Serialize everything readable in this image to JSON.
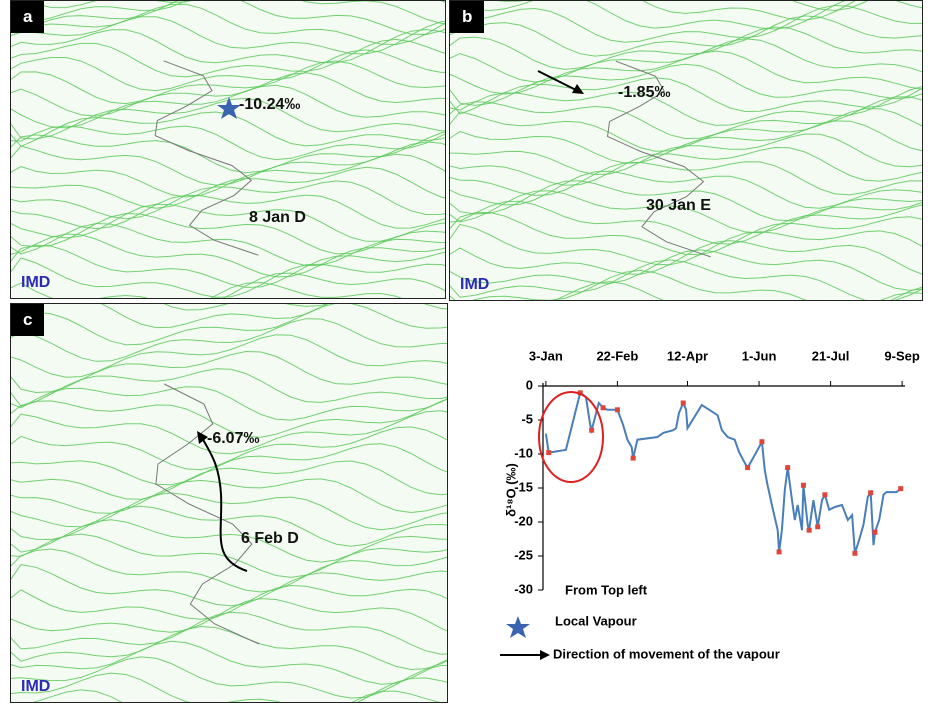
{
  "panels": [
    {
      "tag": "a",
      "value_label": "-10.24‰",
      "date_label": "8 Jan D",
      "source": "IMD"
    },
    {
      "tag": "b",
      "value_label": "-1.85‰",
      "date_label": "30 Jan E",
      "source": "IMD"
    },
    {
      "tag": "c",
      "value_label": "-6.07‰",
      "date_label": "6 Feb D",
      "source": "IMD"
    }
  ],
  "chart_data": {
    "type": "line",
    "y_label": "δ¹⁸O (‰)",
    "x": [
      3,
      5,
      11,
      17,
      27,
      31,
      34,
      35,
      40,
      43,
      46,
      53,
      57,
      60,
      63,
      64,
      67,
      81,
      85,
      92,
      94,
      96,
      99,
      101,
      102,
      112,
      123,
      126,
      130,
      135,
      138,
      142,
      144,
      147,
      151,
      154,
      156,
      158,
      161,
      165,
      166,
      168,
      170,
      172,
      175,
      177,
      179,
      182,
      183,
      186,
      187,
      190,
      193,
      196,
      198,
      201,
      205,
      210,
      214,
      217,
      219,
      222,
      225,
      228,
      230,
      232,
      233,
      236,
      239,
      241,
      248,
      251
    ],
    "series": [
      {
        "color": "#4a7ebb",
        "values": [
          -7,
          -9.8,
          -9.6,
          -9.4,
          -1,
          -1.6,
          -5.7,
          -6.5,
          -2.5,
          -3.2,
          -3.5,
          -3.5,
          -5.7,
          -7.9,
          -9,
          -10.6,
          -7.9,
          -7.5,
          -6.9,
          -6.5,
          -6.2,
          -4,
          -2.5,
          -3.5,
          -6.2,
          -2.8,
          -4.3,
          -6.5,
          -7.5,
          -7.9,
          -9.7,
          -11.3,
          -12,
          -10.9,
          -9.4,
          -8.2,
          -12.4,
          -14.6,
          -17.5,
          -21.2,
          -24.4,
          -21.2,
          -15.3,
          -12,
          -16.8,
          -19.7,
          -17.5,
          -21.2,
          -14.6,
          -20.4,
          -21.2,
          -16.8,
          -20.7,
          -16.8,
          -16,
          -18.2,
          -17.8,
          -17.5,
          -19.7,
          -19,
          -24.6,
          -22.6,
          -20.4,
          -16.3,
          -15.7,
          -23.4,
          -21.5,
          -19.7,
          -16,
          -15.6,
          -15.6,
          -15.1
        ]
      },
      {
        "color": "#e0453a",
        "values": [
          null,
          -9.8,
          null,
          null,
          -1,
          null,
          null,
          -6.5,
          null,
          -3.2,
          null,
          -3.5,
          null,
          null,
          null,
          -10.6,
          null,
          null,
          null,
          null,
          null,
          null,
          -2.5,
          null,
          null,
          null,
          null,
          null,
          null,
          null,
          null,
          null,
          -12,
          null,
          null,
          -8.2,
          null,
          null,
          null,
          null,
          -24.4,
          null,
          null,
          -12,
          null,
          null,
          null,
          null,
          -14.6,
          null,
          -21.2,
          null,
          -20.7,
          null,
          -16,
          null,
          null,
          null,
          null,
          null,
          -24.6,
          null,
          null,
          null,
          -15.7,
          null,
          -21.5,
          null,
          null,
          null,
          null,
          -15.1
        ]
      }
    ],
    "xlim": [
      1,
      254
    ],
    "xticks": [
      {
        "value": 3,
        "label": "3-Jan"
      },
      {
        "value": 53,
        "label": "22-Feb"
      },
      {
        "value": 102,
        "label": "12-Apr"
      },
      {
        "value": 152,
        "label": "1-Jun"
      },
      {
        "value": 202,
        "label": "21-Jul"
      },
      {
        "value": 252,
        "label": "9-Sep"
      }
    ],
    "ylim": [
      -30,
      0
    ],
    "yticks": [
      0,
      -5,
      -10,
      -15,
      -20,
      -25,
      -30
    ]
  },
  "legend": {
    "note": "From Top left",
    "star_label": "Local Vapour",
    "arrow_label": "Direction of movement of the vapour"
  }
}
